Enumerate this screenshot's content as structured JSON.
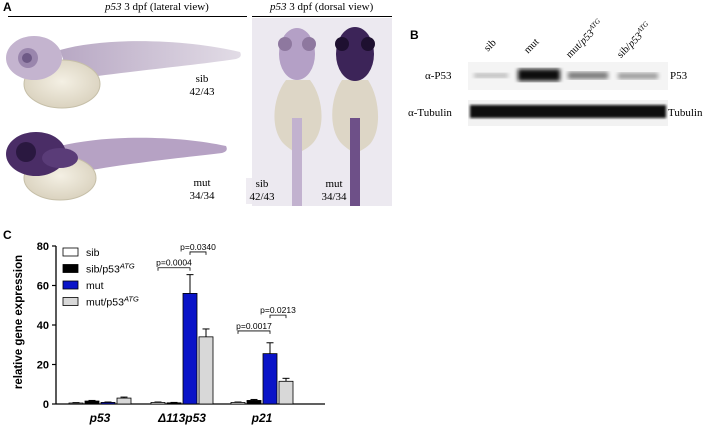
{
  "panel_a": {
    "letter": "A",
    "lateral_title_gene": "p53",
    "lateral_title_rest": " 3 dpf (lateral view)",
    "dorsal_title_gene": "p53",
    "dorsal_title_rest": " 3 dpf (dorsal view)",
    "fish_labels": [
      {
        "genotype": "sib",
        "count": "42/43"
      },
      {
        "genotype": "mut",
        "count": "34/34"
      },
      {
        "genotype": "sib",
        "count": "42/43"
      },
      {
        "genotype": "mut",
        "count": "34/34"
      }
    ]
  },
  "panel_b": {
    "letter": "B",
    "lanes": [
      {
        "base": "sib",
        "sup": ""
      },
      {
        "base": "mut",
        "sup": ""
      },
      {
        "base": "mut/",
        "gene": "p53",
        "sup": "ATG"
      },
      {
        "base": "sib/",
        "gene": "p53",
        "sup": "ATG"
      }
    ],
    "rows": [
      {
        "left": "α-P53",
        "right": "P53"
      },
      {
        "left": "α-Tubulin",
        "right": "Tubulin"
      }
    ]
  },
  "panel_c": {
    "letter": "C",
    "chart_data": {
      "type": "bar",
      "ylabel": "relative gene expression",
      "ylim": [
        0,
        80
      ],
      "yticks": [
        "0",
        "20",
        "40",
        "60",
        "80"
      ],
      "categories": [
        "p53",
        "Δ113p53",
        "p21"
      ],
      "series": [
        {
          "name": "sib",
          "color": "#ffffff",
          "values": [
            0.5,
            0.8,
            0.8
          ],
          "errors": [
            0.2,
            0.2,
            0.2
          ]
        },
        {
          "name": "sib/p53",
          "sup": "ATG",
          "color": "#000000",
          "values": [
            1.5,
            0.6,
            1.8
          ],
          "errors": [
            0.3,
            0.2,
            0.5
          ]
        },
        {
          "name": "mut",
          "color": "#0a14c8",
          "values": [
            0.8,
            56,
            25.5
          ],
          "errors": [
            0.2,
            9.5,
            5.5
          ]
        },
        {
          "name": "mut/p53",
          "sup": "ATG",
          "color": "#d8d8d8",
          "values": [
            3,
            34,
            11.5
          ],
          "errors": [
            0.5,
            4,
            1.5
          ]
        }
      ],
      "annotations": [
        {
          "text": "p=0.0004",
          "category": 1,
          "from_series": 0,
          "to_series": 2,
          "y": 69
        },
        {
          "text": "p=0.0340",
          "category": 1,
          "from_series": 2,
          "to_series": 3,
          "y": 77
        },
        {
          "text": "p=0.0017",
          "category": 2,
          "from_series": 0,
          "to_series": 2,
          "y": 37
        },
        {
          "text": "p=0.0213",
          "category": 2,
          "from_series": 2,
          "to_series": 3,
          "y": 45
        }
      ]
    }
  }
}
